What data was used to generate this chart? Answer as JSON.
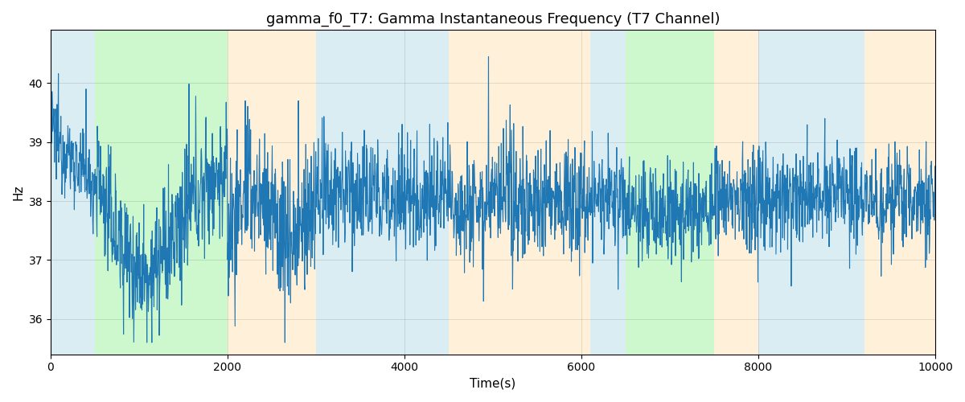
{
  "title": "gamma_f0_T7: Gamma Instantaneous Frequency (T7 Channel)",
  "xlabel": "Time(s)",
  "ylabel": "Hz",
  "xlim": [
    0,
    10000
  ],
  "ylim": [
    35.4,
    40.9
  ],
  "yticks": [
    36,
    37,
    38,
    39,
    40
  ],
  "xticks": [
    0,
    2000,
    4000,
    6000,
    8000,
    10000
  ],
  "line_color": "#1f77b4",
  "line_width": 0.8,
  "background_regions": [
    {
      "xmin": 0,
      "xmax": 500,
      "color": "#add8e6",
      "alpha": 0.45
    },
    {
      "xmin": 500,
      "xmax": 2000,
      "color": "#90ee90",
      "alpha": 0.45
    },
    {
      "xmin": 2000,
      "xmax": 3000,
      "color": "#ffdead",
      "alpha": 0.45
    },
    {
      "xmin": 3000,
      "xmax": 4500,
      "color": "#add8e6",
      "alpha": 0.45
    },
    {
      "xmin": 4500,
      "xmax": 6100,
      "color": "#ffdead",
      "alpha": 0.45
    },
    {
      "xmin": 6100,
      "xmax": 6500,
      "color": "#add8e6",
      "alpha": 0.45
    },
    {
      "xmin": 6500,
      "xmax": 7500,
      "color": "#90ee90",
      "alpha": 0.45
    },
    {
      "xmin": 7500,
      "xmax": 8000,
      "color": "#ffdead",
      "alpha": 0.45
    },
    {
      "xmin": 8000,
      "xmax": 9200,
      "color": "#add8e6",
      "alpha": 0.45
    },
    {
      "xmin": 9200,
      "xmax": 10000,
      "color": "#ffdead",
      "alpha": 0.45
    }
  ],
  "seed": 12345,
  "n_points": 2500,
  "base_freq": 38.0
}
